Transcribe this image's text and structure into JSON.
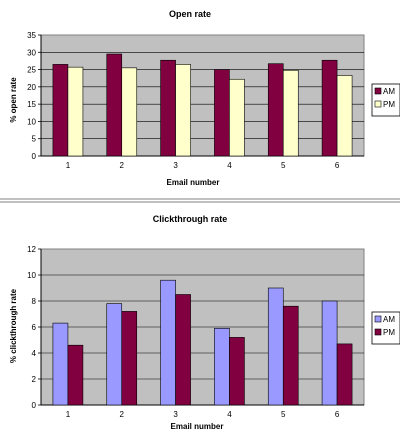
{
  "chart_data": [
    {
      "type": "bar",
      "title": "Open rate",
      "xlabel": "Email number",
      "ylabel": "% open rate",
      "categories": [
        "1",
        "2",
        "3",
        "4",
        "5",
        "6"
      ],
      "ylim": [
        0,
        35
      ],
      "yticks": [
        0,
        5,
        10,
        15,
        20,
        25,
        30,
        35
      ],
      "grid": true,
      "legend_position": "right",
      "series": [
        {
          "name": "AM",
          "color": "#800040",
          "values": [
            26.5,
            29.5,
            27.7,
            25.0,
            26.7,
            27.7
          ]
        },
        {
          "name": "PM",
          "color": "#ffffcc",
          "values": [
            25.7,
            25.5,
            26.5,
            22.2,
            24.8,
            23.3
          ]
        }
      ]
    },
    {
      "type": "bar",
      "title": "Clickthrough rate",
      "xlabel": "Email number",
      "ylabel": "% clickthrough rate",
      "categories": [
        "1",
        "2",
        "3",
        "4",
        "5",
        "6"
      ],
      "ylim": [
        0,
        12
      ],
      "yticks": [
        0,
        2,
        4,
        6,
        8,
        10,
        12
      ],
      "grid": true,
      "legend_position": "right",
      "series": [
        {
          "name": "AM",
          "color": "#9999ff",
          "values": [
            6.3,
            7.8,
            9.6,
            5.9,
            9.0,
            8.0
          ]
        },
        {
          "name": "PM",
          "color": "#800040",
          "values": [
            4.6,
            7.2,
            8.5,
            5.2,
            7.6,
            4.7
          ]
        }
      ]
    }
  ]
}
